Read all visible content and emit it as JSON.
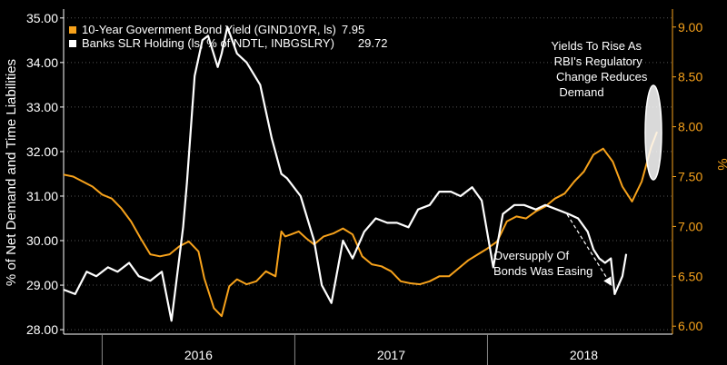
{
  "chart_data": {
    "type": "line",
    "y_left": {
      "label": "% of Net Demand and Time Liabilities",
      "range": [
        27.9,
        35.2
      ],
      "ticks": [
        "35.00",
        "34.00",
        "33.00",
        "32.00",
        "31.00",
        "30.00",
        "29.00",
        "28.00"
      ],
      "tick_values": [
        35,
        34,
        33,
        32,
        31,
        30,
        29,
        28
      ]
    },
    "y_right": {
      "label": "%",
      "range": [
        5.92,
        9.18
      ],
      "ticks": [
        "9.00",
        "8.50",
        "8.00",
        "7.50",
        "7.00",
        "6.50",
        "6.00"
      ],
      "tick_values": [
        9.0,
        8.5,
        8.0,
        7.5,
        7.0,
        6.5,
        6.0
      ]
    },
    "x_axis": {
      "range": [
        2015.8,
        2018.96
      ],
      "labels": [
        "2016",
        "2017",
        "2018"
      ],
      "label_positions": [
        2016.5,
        2017.5,
        2018.5
      ],
      "dividers": [
        2016.0,
        2017.0,
        2018.0
      ]
    },
    "series": [
      {
        "name": "10-Year Government Bond Yield (GIND10YR, ls)",
        "last_value": "7.95",
        "color": "#f7a21b",
        "axis": "right",
        "x": [
          2015.8,
          2015.85,
          2015.9,
          2015.95,
          2016.0,
          2016.05,
          2016.1,
          2016.15,
          2016.2,
          2016.25,
          2016.3,
          2016.35,
          2016.4,
          2016.45,
          2016.5,
          2016.53,
          2016.58,
          2016.62,
          2016.66,
          2016.7,
          2016.75,
          2016.8,
          2016.85,
          2016.9,
          2016.93,
          2016.95,
          2016.98,
          2017.02,
          2017.06,
          2017.1,
          2017.15,
          2017.2,
          2017.25,
          2017.3,
          2017.35,
          2017.4,
          2017.45,
          2017.5,
          2017.55,
          2017.6,
          2017.65,
          2017.7,
          2017.75,
          2017.8,
          2017.85,
          2017.9,
          2017.95,
          2018.0,
          2018.05,
          2018.1,
          2018.15,
          2018.2,
          2018.25,
          2018.3,
          2018.35,
          2018.4,
          2018.45,
          2018.5,
          2018.55,
          2018.6,
          2018.65,
          2018.7,
          2018.75,
          2018.8,
          2018.85,
          2018.88
        ],
        "y": [
          7.52,
          7.5,
          7.45,
          7.4,
          7.32,
          7.28,
          7.18,
          7.05,
          6.88,
          6.72,
          6.7,
          6.72,
          6.8,
          6.85,
          6.75,
          6.48,
          6.18,
          6.1,
          6.4,
          6.47,
          6.42,
          6.45,
          6.55,
          6.5,
          6.95,
          6.9,
          6.92,
          6.95,
          6.88,
          6.82,
          6.9,
          6.93,
          6.98,
          6.92,
          6.7,
          6.62,
          6.6,
          6.55,
          6.45,
          6.43,
          6.42,
          6.45,
          6.5,
          6.5,
          6.58,
          6.66,
          6.72,
          6.78,
          6.85,
          7.05,
          7.1,
          7.08,
          7.15,
          7.2,
          7.28,
          7.33,
          7.45,
          7.55,
          7.72,
          7.78,
          7.65,
          7.4,
          7.25,
          7.45,
          7.8,
          7.95
        ]
      },
      {
        "name": "Banks SLR Holding (ls, % of NDTL, INBGSLRY)",
        "last_value": "29.72",
        "color": "#ffffff",
        "axis": "left",
        "x": [
          2015.8,
          2015.86,
          2015.92,
          2015.97,
          2016.03,
          2016.08,
          2016.14,
          2016.19,
          2016.25,
          2016.31,
          2016.36,
          2016.42,
          2016.44,
          2016.48,
          2016.52,
          2016.55,
          2016.6,
          2016.62,
          2016.65,
          2016.7,
          2016.75,
          2016.82,
          2016.88,
          2016.93,
          2016.96,
          2017.03,
          2017.1,
          2017.14,
          2017.19,
          2017.25,
          2017.3,
          2017.36,
          2017.42,
          2017.48,
          2017.53,
          2017.59,
          2017.64,
          2017.7,
          2017.75,
          2017.78,
          2017.81,
          2017.86,
          2017.92,
          2017.97,
          2018.03,
          2018.08,
          2018.14,
          2018.19,
          2018.25,
          2018.3,
          2018.36,
          2018.42,
          2018.47,
          2018.52,
          2018.55,
          2018.58,
          2018.61,
          2018.64,
          2018.66,
          2018.7,
          2018.72
        ],
        "y": [
          28.9,
          28.8,
          29.3,
          29.2,
          29.4,
          29.3,
          29.5,
          29.2,
          29.1,
          29.3,
          28.2,
          30.3,
          31.3,
          33.7,
          34.5,
          34.6,
          33.9,
          34.2,
          34.8,
          34.2,
          34.0,
          33.5,
          32.3,
          31.5,
          31.4,
          31.0,
          30.0,
          29.0,
          28.6,
          30.0,
          29.6,
          30.2,
          30.5,
          30.4,
          30.4,
          30.3,
          30.7,
          30.8,
          31.1,
          31.1,
          31.1,
          31.0,
          31.2,
          30.9,
          29.4,
          30.6,
          30.8,
          30.8,
          30.7,
          30.8,
          30.7,
          30.6,
          30.5,
          30.2,
          29.8,
          29.6,
          29.5,
          29.6,
          28.8,
          29.2,
          29.7
        ]
      }
    ],
    "annotations": {
      "top_right": [
        "Yields To Rise As",
        "RBI's Regulatory",
        "Change Reduces",
        "Demand"
      ],
      "bottom_right": [
        "Oversupply Of",
        "Bonds Was Easing"
      ]
    },
    "legend_placement": "top-left",
    "grid": "horizontal dotted"
  }
}
